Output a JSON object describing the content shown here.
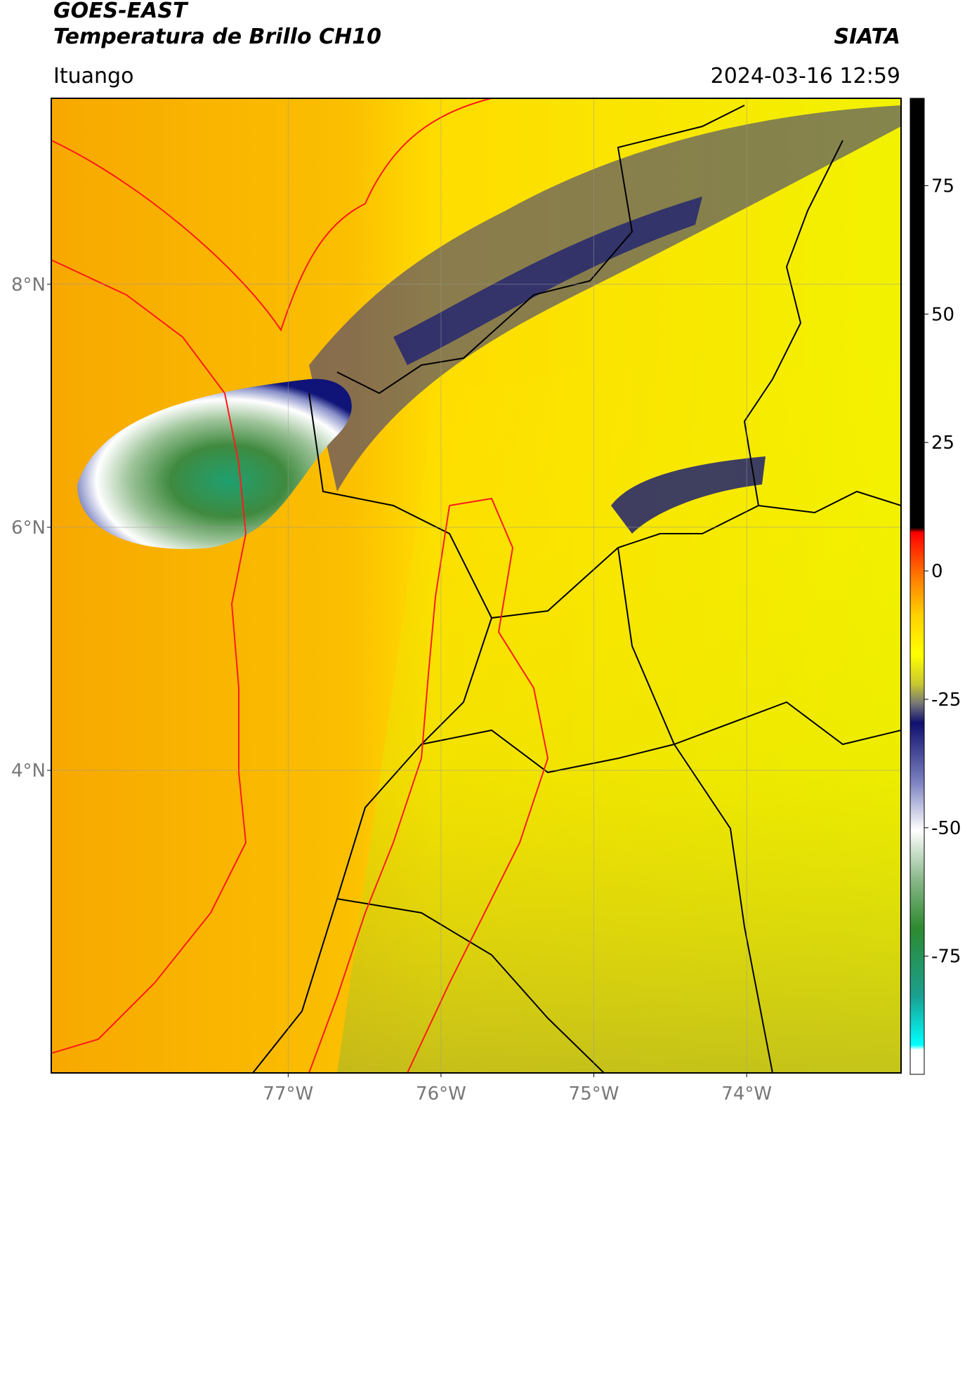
{
  "header": {
    "title": "GOES-EAST",
    "subtitle": "Temperatura de Brillo CH10",
    "source": "SIATA",
    "location": "Ituango",
    "datetime": "2024-03-16 12:59"
  },
  "map": {
    "latlim": [
      1.51,
      9.53
    ],
    "lonlim": [
      -78.55,
      -72.99
    ],
    "latticks": [
      {
        "value": 8,
        "label": "8°N"
      },
      {
        "value": 6,
        "label": "6°N"
      },
      {
        "value": 4,
        "label": "4°N"
      }
    ],
    "lonticks": [
      {
        "value": -77,
        "label": "77°W"
      },
      {
        "value": -76,
        "label": "76°W"
      },
      {
        "value": -75,
        "label": "75°W"
      },
      {
        "value": -74,
        "label": "74°W"
      }
    ]
  },
  "colorbar": {
    "lim": [
      -98,
      92
    ],
    "ticks": [
      75,
      50,
      25,
      0,
      -25,
      -50,
      -75
    ]
  }
}
